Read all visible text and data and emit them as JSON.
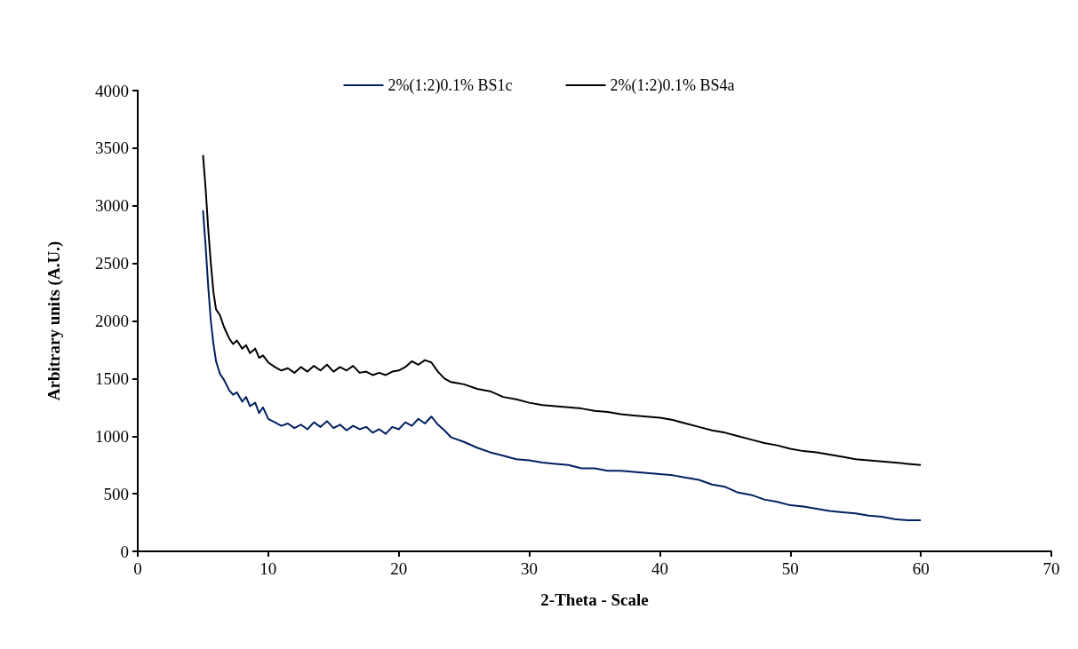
{
  "chart_data": {
    "type": "line",
    "xlabel": "2-Theta - Scale",
    "ylabel": "Arbitrary units (A.U.)",
    "xlim": [
      0,
      70
    ],
    "xticks": [
      0,
      10,
      20,
      30,
      40,
      50,
      60,
      70
    ],
    "ylim": [
      0,
      4000
    ],
    "yticks": [
      0,
      500,
      1000,
      1500,
      2000,
      2500,
      3000,
      3500,
      4000
    ],
    "grid": false,
    "legend": "top",
    "marker": "none",
    "line_style": "solid",
    "series": [
      {
        "name": "2%(1:2)0.1% BS1c",
        "color": "#002060",
        "x": [
          5,
          5.2,
          5.4,
          5.6,
          5.8,
          6,
          6.3,
          6.6,
          7,
          7.3,
          7.6,
          8,
          8.3,
          8.6,
          9,
          9.3,
          9.6,
          10,
          10.5,
          11,
          11.5,
          12,
          12.5,
          13,
          13.5,
          14,
          14.5,
          15,
          15.5,
          16,
          16.5,
          17,
          17.5,
          18,
          18.5,
          19,
          19.5,
          20,
          20.5,
          21,
          21.5,
          22,
          22.5,
          23,
          23.5,
          24,
          25,
          26,
          27,
          28,
          29,
          30,
          31,
          32,
          33,
          34,
          35,
          36,
          37,
          38,
          39,
          40,
          41,
          42,
          43,
          44,
          45,
          46,
          47,
          48,
          49,
          50,
          51,
          52,
          53,
          54,
          55,
          56,
          57,
          58,
          59,
          60
        ],
        "values": [
          2960,
          2650,
          2300,
          2000,
          1800,
          1650,
          1540,
          1490,
          1400,
          1360,
          1380,
          1300,
          1340,
          1260,
          1290,
          1200,
          1250,
          1150,
          1120,
          1090,
          1110,
          1070,
          1100,
          1060,
          1120,
          1080,
          1130,
          1070,
          1100,
          1050,
          1090,
          1060,
          1080,
          1030,
          1060,
          1020,
          1080,
          1060,
          1120,
          1090,
          1150,
          1110,
          1170,
          1100,
          1050,
          990,
          950,
          900,
          860,
          830,
          800,
          790,
          770,
          760,
          750,
          720,
          720,
          700,
          700,
          690,
          680,
          670,
          660,
          640,
          620,
          580,
          560,
          510,
          490,
          450,
          430,
          400,
          390,
          370,
          350,
          340,
          330,
          310,
          300,
          280,
          270,
          270
        ]
      },
      {
        "name": "2%(1:2)0.1% BS4a",
        "color": "#000000",
        "x": [
          5,
          5.2,
          5.4,
          5.6,
          5.8,
          6,
          6.3,
          6.6,
          7,
          7.3,
          7.6,
          8,
          8.3,
          8.6,
          9,
          9.3,
          9.6,
          10,
          10.5,
          11,
          11.5,
          12,
          12.5,
          13,
          13.5,
          14,
          14.5,
          15,
          15.5,
          16,
          16.5,
          17,
          17.5,
          18,
          18.5,
          19,
          19.5,
          20,
          20.5,
          21,
          21.5,
          22,
          22.5,
          23,
          23.5,
          24,
          25,
          26,
          27,
          28,
          29,
          30,
          31,
          32,
          33,
          34,
          35,
          36,
          37,
          38,
          39,
          40,
          41,
          42,
          43,
          44,
          45,
          46,
          47,
          48,
          49,
          50,
          51,
          52,
          53,
          54,
          55,
          56,
          57,
          58,
          59,
          60
        ],
        "values": [
          3440,
          3150,
          2800,
          2500,
          2250,
          2100,
          2050,
          1950,
          1850,
          1800,
          1830,
          1760,
          1790,
          1720,
          1760,
          1680,
          1700,
          1640,
          1600,
          1570,
          1590,
          1550,
          1600,
          1560,
          1610,
          1570,
          1620,
          1560,
          1600,
          1570,
          1610,
          1550,
          1560,
          1530,
          1550,
          1530,
          1560,
          1570,
          1600,
          1650,
          1620,
          1660,
          1640,
          1560,
          1500,
          1470,
          1450,
          1410,
          1390,
          1340,
          1320,
          1290,
          1270,
          1260,
          1250,
          1240,
          1220,
          1210,
          1190,
          1180,
          1170,
          1160,
          1140,
          1110,
          1080,
          1050,
          1030,
          1000,
          970,
          940,
          920,
          890,
          870,
          860,
          840,
          820,
          800,
          790,
          780,
          770,
          760,
          750
        ]
      }
    ]
  }
}
